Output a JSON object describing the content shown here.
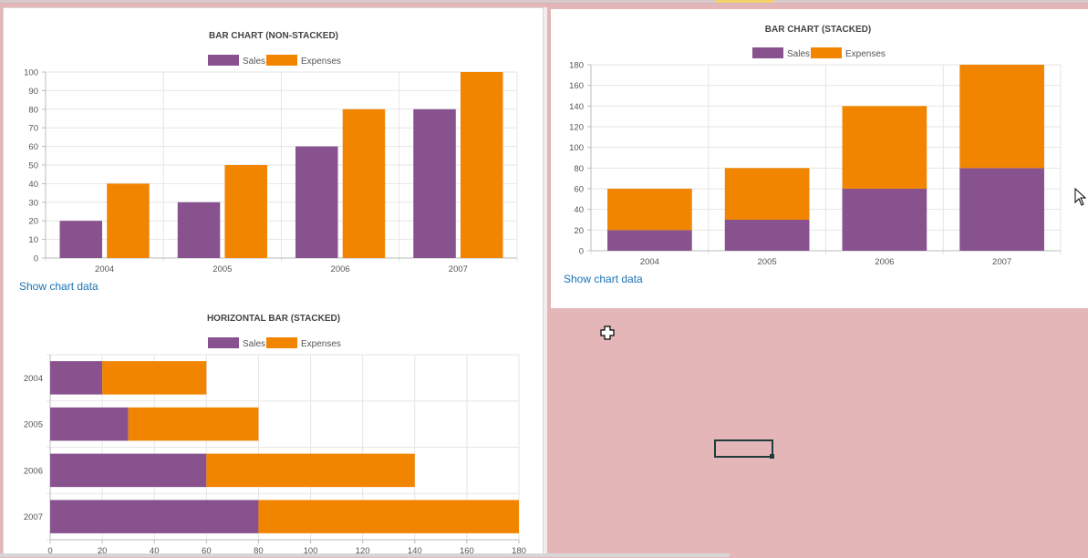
{
  "colors": {
    "sales": "#88528f",
    "expenses": "#f28500",
    "grid": "#e6e6e6",
    "axis": "#bbbbbb"
  },
  "links": {
    "show_chart_data": "Show chart data"
  },
  "chart_data": [
    {
      "id": "bar-non-stacked",
      "type": "bar",
      "title": "BAR CHART (NON-STACKED)",
      "categories": [
        "2004",
        "2005",
        "2006",
        "2007"
      ],
      "series": [
        {
          "name": "Sales",
          "values": [
            20,
            30,
            60,
            80
          ]
        },
        {
          "name": "Expenses",
          "values": [
            40,
            50,
            80,
            100
          ]
        }
      ],
      "ylim": [
        0,
        100
      ],
      "yticks": [
        0,
        10,
        20,
        30,
        40,
        50,
        60,
        70,
        80,
        90,
        100
      ],
      "stacked": false,
      "orientation": "vertical",
      "legend": "top-center",
      "grid": true
    },
    {
      "id": "bar-stacked",
      "type": "bar",
      "title": "BAR CHART (STACKED)",
      "categories": [
        "2004",
        "2005",
        "2006",
        "2007"
      ],
      "series": [
        {
          "name": "Sales",
          "values": [
            20,
            30,
            60,
            80
          ]
        },
        {
          "name": "Expenses",
          "values": [
            40,
            50,
            80,
            100
          ]
        }
      ],
      "ylim": [
        0,
        180
      ],
      "yticks": [
        0,
        20,
        40,
        60,
        80,
        100,
        120,
        140,
        160,
        180
      ],
      "stacked": true,
      "orientation": "vertical",
      "legend": "top-center",
      "grid": true
    },
    {
      "id": "hbar-stacked",
      "type": "bar",
      "title": "HORIZONTAL BAR (STACKED)",
      "categories": [
        "2004",
        "2005",
        "2006",
        "2007"
      ],
      "series": [
        {
          "name": "Sales",
          "values": [
            20,
            30,
            60,
            80
          ]
        },
        {
          "name": "Expenses",
          "values": [
            40,
            50,
            80,
            100
          ]
        }
      ],
      "xlim": [
        0,
        180
      ],
      "xticks": [
        0,
        20,
        40,
        60,
        80,
        100,
        120,
        140,
        160,
        180
      ],
      "stacked": true,
      "orientation": "horizontal",
      "legend": "top-center",
      "grid": true
    }
  ]
}
